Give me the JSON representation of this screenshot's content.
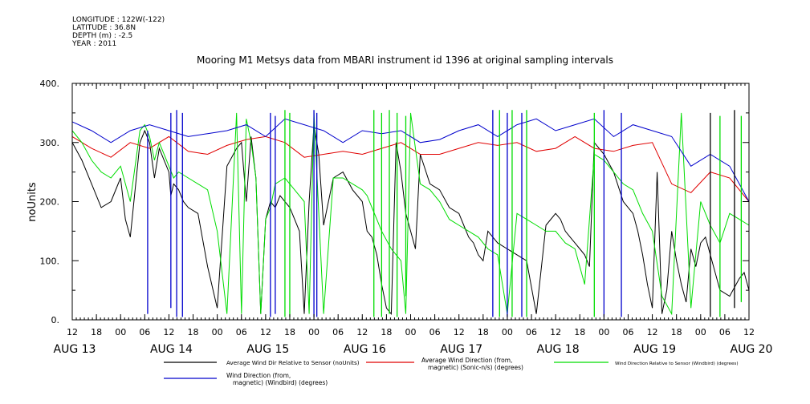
{
  "header": {
    "longitude": "LONGITUDE : 122W(-122)",
    "latitude": "LATITUDE : 36.8N",
    "depth": "DEPTH (m) : -2.5",
    "year": "YEAR : 2011"
  },
  "chart_data": {
    "type": "line",
    "title": "Mooring M1 Metsys data from MBARI instrument id 1396 at original sampling intervals",
    "ylabel": "noUnits",
    "xlabel": "",
    "ylim": [
      0,
      400
    ],
    "yticks": [
      "0.",
      "100.",
      "200.",
      "300.",
      "400."
    ],
    "xlim": [
      0,
      7
    ],
    "x_units": "days since Aug 13 12:00",
    "hour_ticks": [
      "12",
      "18",
      "00",
      "06",
      "12",
      "18",
      "00",
      "06",
      "12",
      "18",
      "00",
      "06",
      "12",
      "18",
      "00",
      "06",
      "12",
      "18",
      "00",
      "06",
      "12",
      "18",
      "00",
      "06",
      "12",
      "18",
      "00",
      "06",
      "12"
    ],
    "day_labels": [
      {
        "label": "AUG 13",
        "x": 0
      },
      {
        "label": "AUG 14",
        "x": 1
      },
      {
        "label": "AUG 15",
        "x": 2
      },
      {
        "label": "AUG 16",
        "x": 3
      },
      {
        "label": "AUG 17",
        "x": 4
      },
      {
        "label": "AUG 18",
        "x": 5
      },
      {
        "label": "AUG 19",
        "x": 6
      },
      {
        "label": "AUG 20",
        "x": 7
      }
    ],
    "grid": false,
    "legend_position": "bottom",
    "series": [
      {
        "name": "Average Wind Dir Relative to Sensor (noUnits)",
        "color": "#000000",
        "x": [
          0.0,
          0.1,
          0.2,
          0.3,
          0.4,
          0.5,
          0.55,
          0.6,
          0.7,
          0.75,
          0.8,
          0.85,
          0.9,
          0.95,
          1.0,
          1.02,
          1.05,
          1.1,
          1.15,
          1.2,
          1.3,
          1.4,
          1.5,
          1.6,
          1.7,
          1.75,
          1.8,
          1.85,
          1.9,
          1.95,
          2.0,
          2.05,
          2.1,
          2.15,
          2.2,
          2.25,
          2.3,
          2.35,
          2.4,
          2.45,
          2.5,
          2.55,
          2.6,
          2.7,
          2.8,
          2.9,
          3.0,
          3.05,
          3.1,
          3.15,
          3.2,
          3.25,
          3.3,
          3.35,
          3.4,
          3.45,
          3.5,
          3.55,
          3.6,
          3.7,
          3.8,
          3.9,
          4.0,
          4.05,
          4.1,
          4.15,
          4.2,
          4.25,
          4.3,
          4.35,
          4.4,
          4.5,
          4.6,
          4.7,
          4.8,
          4.9,
          5.0,
          5.05,
          5.1,
          5.15,
          5.2,
          5.25,
          5.3,
          5.35,
          5.4,
          5.5,
          5.6,
          5.7,
          5.8,
          5.85,
          5.9,
          5.95,
          6.0,
          6.05,
          6.1,
          6.15,
          6.2,
          6.25,
          6.3,
          6.35,
          6.4,
          6.45,
          6.5,
          6.55,
          6.6,
          6.7,
          6.8,
          6.9,
          6.95,
          7.0
        ],
        "y": [
          300,
          270,
          230,
          190,
          200,
          240,
          170,
          140,
          300,
          320,
          300,
          240,
          290,
          270,
          250,
          210,
          230,
          220,
          200,
          190,
          180,
          90,
          20,
          260,
          290,
          300,
          200,
          310,
          240,
          10,
          170,
          200,
          190,
          210,
          200,
          190,
          170,
          150,
          10,
          200,
          330,
          280,
          160,
          240,
          250,
          220,
          200,
          150,
          140,
          110,
          60,
          20,
          10,
          300,
          250,
          180,
          150,
          120,
          280,
          230,
          220,
          190,
          180,
          160,
          140,
          130,
          110,
          100,
          150,
          140,
          130,
          120,
          110,
          100,
          10,
          160,
          180,
          170,
          150,
          140,
          130,
          120,
          110,
          90,
          300,
          280,
          250,
          200,
          180,
          150,
          110,
          60,
          20,
          250,
          10,
          50,
          150,
          100,
          60,
          30,
          120,
          90,
          130,
          140,
          110,
          50,
          40,
          70,
          80,
          50
        ]
      },
      {
        "name": "Average Wind Direction (from, magnetic) (Sonic-n/s) (degrees)",
        "color": "#e00000",
        "x": [
          0.0,
          0.2,
          0.4,
          0.6,
          0.8,
          1.0,
          1.2,
          1.4,
          1.6,
          1.8,
          2.0,
          2.2,
          2.4,
          2.6,
          2.8,
          3.0,
          3.2,
          3.4,
          3.6,
          3.8,
          4.0,
          4.2,
          4.4,
          4.6,
          4.8,
          5.0,
          5.2,
          5.4,
          5.6,
          5.8,
          6.0,
          6.2,
          6.4,
          6.6,
          6.8,
          7.0
        ],
        "y": [
          310,
          290,
          275,
          300,
          290,
          310,
          285,
          280,
          295,
          305,
          310,
          300,
          275,
          280,
          285,
          280,
          290,
          300,
          280,
          280,
          290,
          300,
          295,
          300,
          285,
          290,
          310,
          290,
          285,
          295,
          300,
          230,
          215,
          250,
          240,
          200
        ]
      },
      {
        "name": "Wind Direction Relative to Sensor (Windbird) (degrees)",
        "color": "#00dd00",
        "x": [
          0.0,
          0.1,
          0.2,
          0.3,
          0.4,
          0.5,
          0.6,
          0.7,
          0.75,
          0.8,
          0.85,
          0.9,
          0.95,
          1.0,
          1.05,
          1.1,
          1.2,
          1.3,
          1.4,
          1.5,
          1.6,
          1.7,
          1.75,
          1.8,
          1.85,
          1.9,
          1.95,
          2.0,
          2.05,
          2.1,
          2.2,
          2.3,
          2.4,
          2.45,
          2.5,
          2.6,
          2.7,
          2.8,
          2.9,
          3.0,
          3.05,
          3.1,
          3.15,
          3.2,
          3.3,
          3.4,
          3.45,
          3.5,
          3.6,
          3.7,
          3.8,
          3.9,
          4.0,
          4.1,
          4.2,
          4.3,
          4.4,
          4.5,
          4.6,
          4.7,
          4.8,
          4.9,
          5.0,
          5.05,
          5.1,
          5.2,
          5.3,
          5.4,
          5.5,
          5.6,
          5.7,
          5.8,
          5.9,
          6.0,
          6.1,
          6.2,
          6.3,
          6.4,
          6.5,
          6.6,
          6.7,
          6.8,
          6.9,
          7.0
        ],
        "y": [
          320,
          300,
          270,
          250,
          240,
          260,
          200,
          320,
          330,
          310,
          270,
          300,
          280,
          260,
          240,
          250,
          240,
          230,
          220,
          150,
          10,
          350,
          10,
          340,
          300,
          240,
          10,
          170,
          190,
          230,
          240,
          220,
          200,
          10,
          350,
          10,
          240,
          240,
          230,
          220,
          210,
          190,
          170,
          150,
          120,
          100,
          10,
          350,
          230,
          220,
          200,
          170,
          160,
          150,
          140,
          120,
          110,
          10,
          180,
          170,
          160,
          150,
          150,
          140,
          130,
          120,
          60,
          280,
          270,
          250,
          230,
          220,
          180,
          150,
          40,
          10,
          350,
          20,
          200,
          160,
          130,
          180,
          170,
          160
        ]
      },
      {
        "name": "Wind Direction (from, magnetic) (Windbird) (degrees)",
        "color": "#0000cc",
        "x": [
          0.0,
          0.2,
          0.4,
          0.6,
          0.8,
          1.0,
          1.2,
          1.4,
          1.6,
          1.8,
          2.0,
          2.2,
          2.4,
          2.6,
          2.8,
          3.0,
          3.2,
          3.4,
          3.6,
          3.8,
          4.0,
          4.2,
          4.4,
          4.6,
          4.8,
          5.0,
          5.2,
          5.4,
          5.6,
          5.8,
          6.0,
          6.2,
          6.4,
          6.6,
          6.8,
          7.0
        ],
        "y": [
          335,
          320,
          300,
          320,
          330,
          320,
          310,
          315,
          320,
          330,
          310,
          340,
          330,
          320,
          300,
          320,
          315,
          320,
          300,
          305,
          320,
          330,
          310,
          330,
          340,
          320,
          330,
          340,
          310,
          330,
          320,
          310,
          260,
          280,
          260,
          200
        ]
      }
    ],
    "spikes": [
      {
        "x": 0.78,
        "low": 10,
        "high": 320,
        "color": "#0000cc"
      },
      {
        "x": 1.02,
        "low": 20,
        "high": 350,
        "color": "#0000cc"
      },
      {
        "x": 1.08,
        "low": 5,
        "high": 355,
        "color": "#0000cc"
      },
      {
        "x": 1.14,
        "low": 5,
        "high": 350,
        "color": "#0000cc"
      },
      {
        "x": 2.05,
        "low": 5,
        "high": 350,
        "color": "#0000cc"
      },
      {
        "x": 2.1,
        "low": 10,
        "high": 345,
        "color": "#0000cc"
      },
      {
        "x": 2.2,
        "low": 5,
        "high": 355,
        "color": "#00dd00"
      },
      {
        "x": 2.25,
        "low": 5,
        "high": 350,
        "color": "#00dd00"
      },
      {
        "x": 2.5,
        "low": 5,
        "high": 355,
        "color": "#0000cc"
      },
      {
        "x": 2.53,
        "low": 5,
        "high": 350,
        "color": "#0000cc"
      },
      {
        "x": 3.12,
        "low": 5,
        "high": 355,
        "color": "#00dd00"
      },
      {
        "x": 3.2,
        "low": 5,
        "high": 350,
        "color": "#00dd00"
      },
      {
        "x": 3.28,
        "low": 10,
        "high": 355,
        "color": "#00dd00"
      },
      {
        "x": 3.36,
        "low": 5,
        "high": 350,
        "color": "#00dd00"
      },
      {
        "x": 3.45,
        "low": 40,
        "high": 345,
        "color": "#00dd00"
      },
      {
        "x": 4.35,
        "low": 5,
        "high": 355,
        "color": "#0000cc"
      },
      {
        "x": 4.42,
        "low": 5,
        "high": 355,
        "color": "#00dd00"
      },
      {
        "x": 4.5,
        "low": 5,
        "high": 350,
        "color": "#0000cc"
      },
      {
        "x": 4.55,
        "low": 5,
        "high": 355,
        "color": "#00dd00"
      },
      {
        "x": 4.65,
        "low": 5,
        "high": 350,
        "color": "#0000cc"
      },
      {
        "x": 4.7,
        "low": 5,
        "high": 355,
        "color": "#00dd00"
      },
      {
        "x": 5.4,
        "low": 5,
        "high": 350,
        "color": "#00dd00"
      },
      {
        "x": 5.5,
        "low": 5,
        "high": 355,
        "color": "#0000cc"
      },
      {
        "x": 5.68,
        "low": 5,
        "high": 350,
        "color": "#0000cc"
      },
      {
        "x": 6.6,
        "low": 5,
        "high": 350,
        "color": "#000000"
      },
      {
        "x": 6.7,
        "low": 5,
        "high": 345,
        "color": "#00dd00"
      },
      {
        "x": 6.85,
        "low": 20,
        "high": 355,
        "color": "#000000"
      },
      {
        "x": 6.92,
        "low": 30,
        "high": 345,
        "color": "#00dd00"
      }
    ]
  },
  "legend": [
    {
      "label": "Average Wind Dir Relative to Sensor (noUnits)",
      "color": "#000000"
    },
    {
      "label": "Average Wind Direction (from,\nmagnetic) (Sonic-n/s) (degrees)",
      "color": "#e00000"
    },
    {
      "label": "Wind Direction Relative to Sensor (Windbird) (degrees)",
      "color": "#00dd00"
    },
    {
      "label": "Wind Direction (from,\nmagnetic) (Windbird) (degrees)",
      "color": "#0000cc"
    }
  ]
}
